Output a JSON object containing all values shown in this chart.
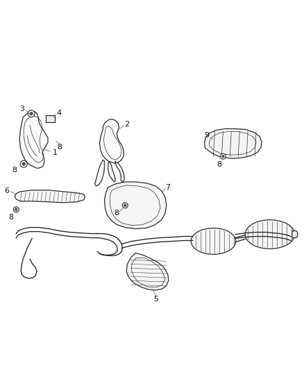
{
  "bg_color": "#ffffff",
  "line_color": "#2a2a2a",
  "label_color": "#111111",
  "fig_width": 4.38,
  "fig_height": 5.33,
  "dpi": 100
}
